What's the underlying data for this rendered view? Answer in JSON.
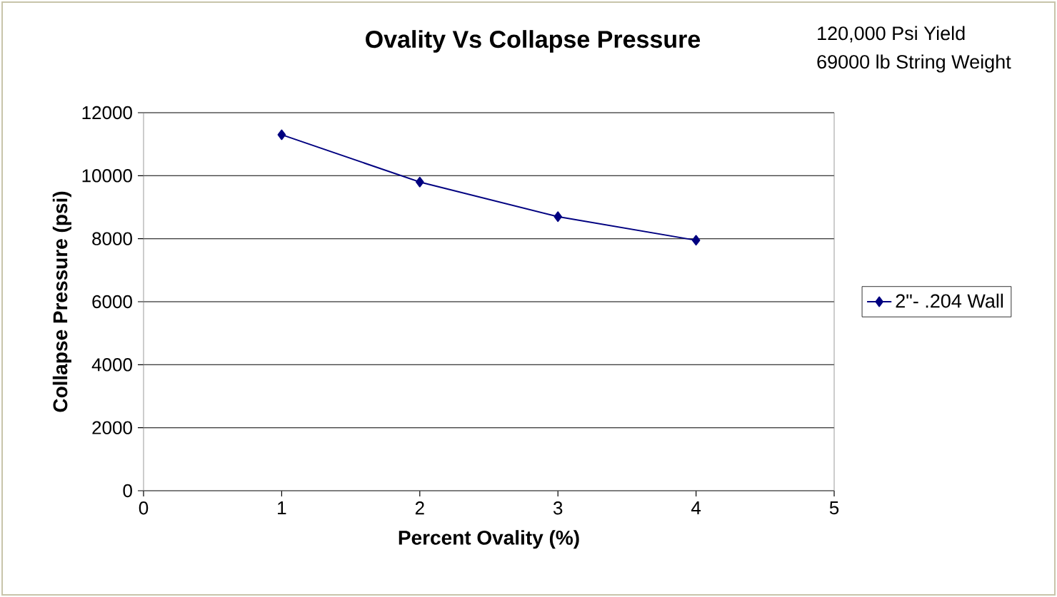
{
  "chart_data": {
    "type": "line",
    "title": "Ovality Vs Collapse Pressure",
    "xlabel": "Percent Ovality (%)",
    "ylabel": "Collapse Pressure (psi)",
    "annotations": [
      "120,000 Psi Yield",
      "69000 lb String Weight"
    ],
    "x": [
      1,
      2,
      3,
      4
    ],
    "series": [
      {
        "name": "2\"- .204 Wall",
        "color": "#000080",
        "values": [
          11300,
          9800,
          8700,
          7950
        ]
      }
    ],
    "xlim": [
      0,
      5
    ],
    "xticks": [
      0,
      1,
      2,
      3,
      4,
      5
    ],
    "ylim": [
      0,
      12000
    ],
    "yticks": [
      0,
      2000,
      4000,
      6000,
      8000,
      10000,
      12000
    ],
    "grid": "y",
    "legend": "right",
    "marker": "diamond",
    "line_style": "solid"
  }
}
